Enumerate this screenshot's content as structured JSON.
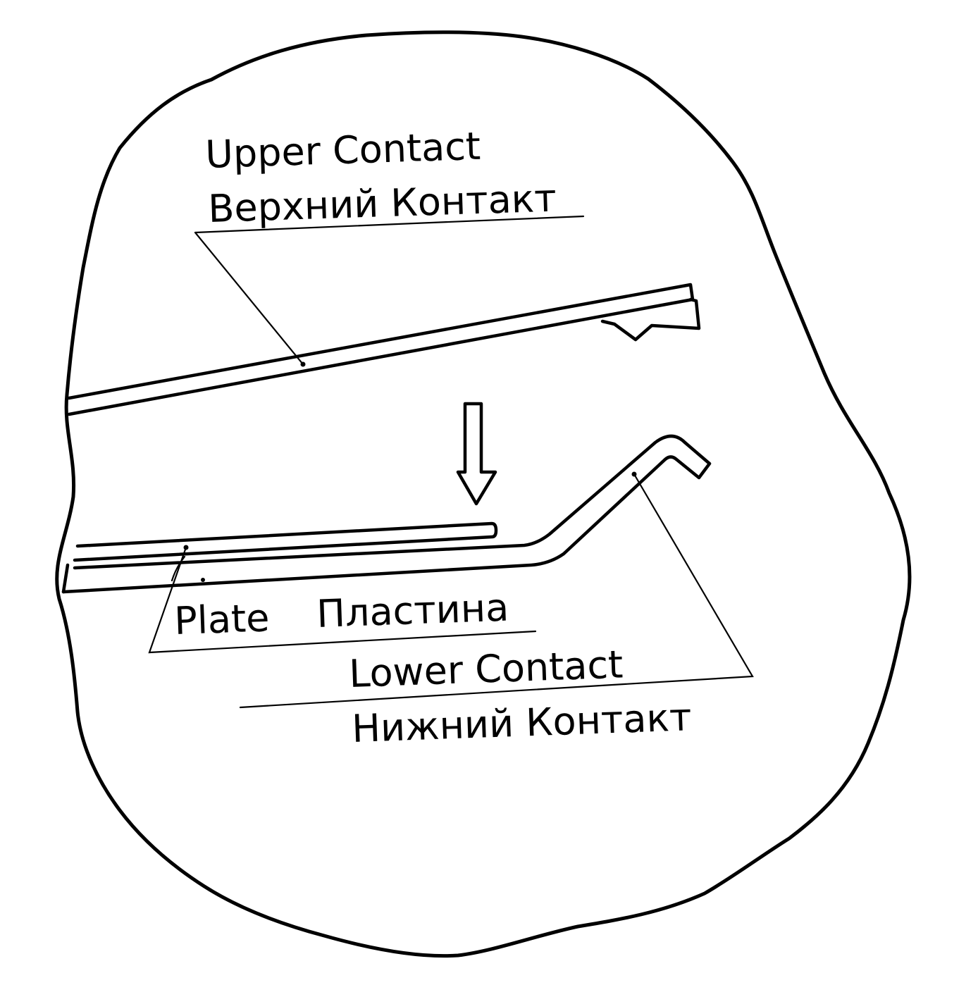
{
  "labels": {
    "upper_contact_en": "Upper Contact",
    "upper_contact_ru": "Верхний Контакт",
    "plate_en": "Plate",
    "plate_ru": "Пластина",
    "lower_contact_en": "Lower Contact",
    "lower_contact_ru": "Нижний Контакт"
  },
  "colors": {
    "ink": "#000000",
    "background": "#ffffff"
  },
  "icons": {
    "motion_arrow": "arrow-down-icon"
  }
}
